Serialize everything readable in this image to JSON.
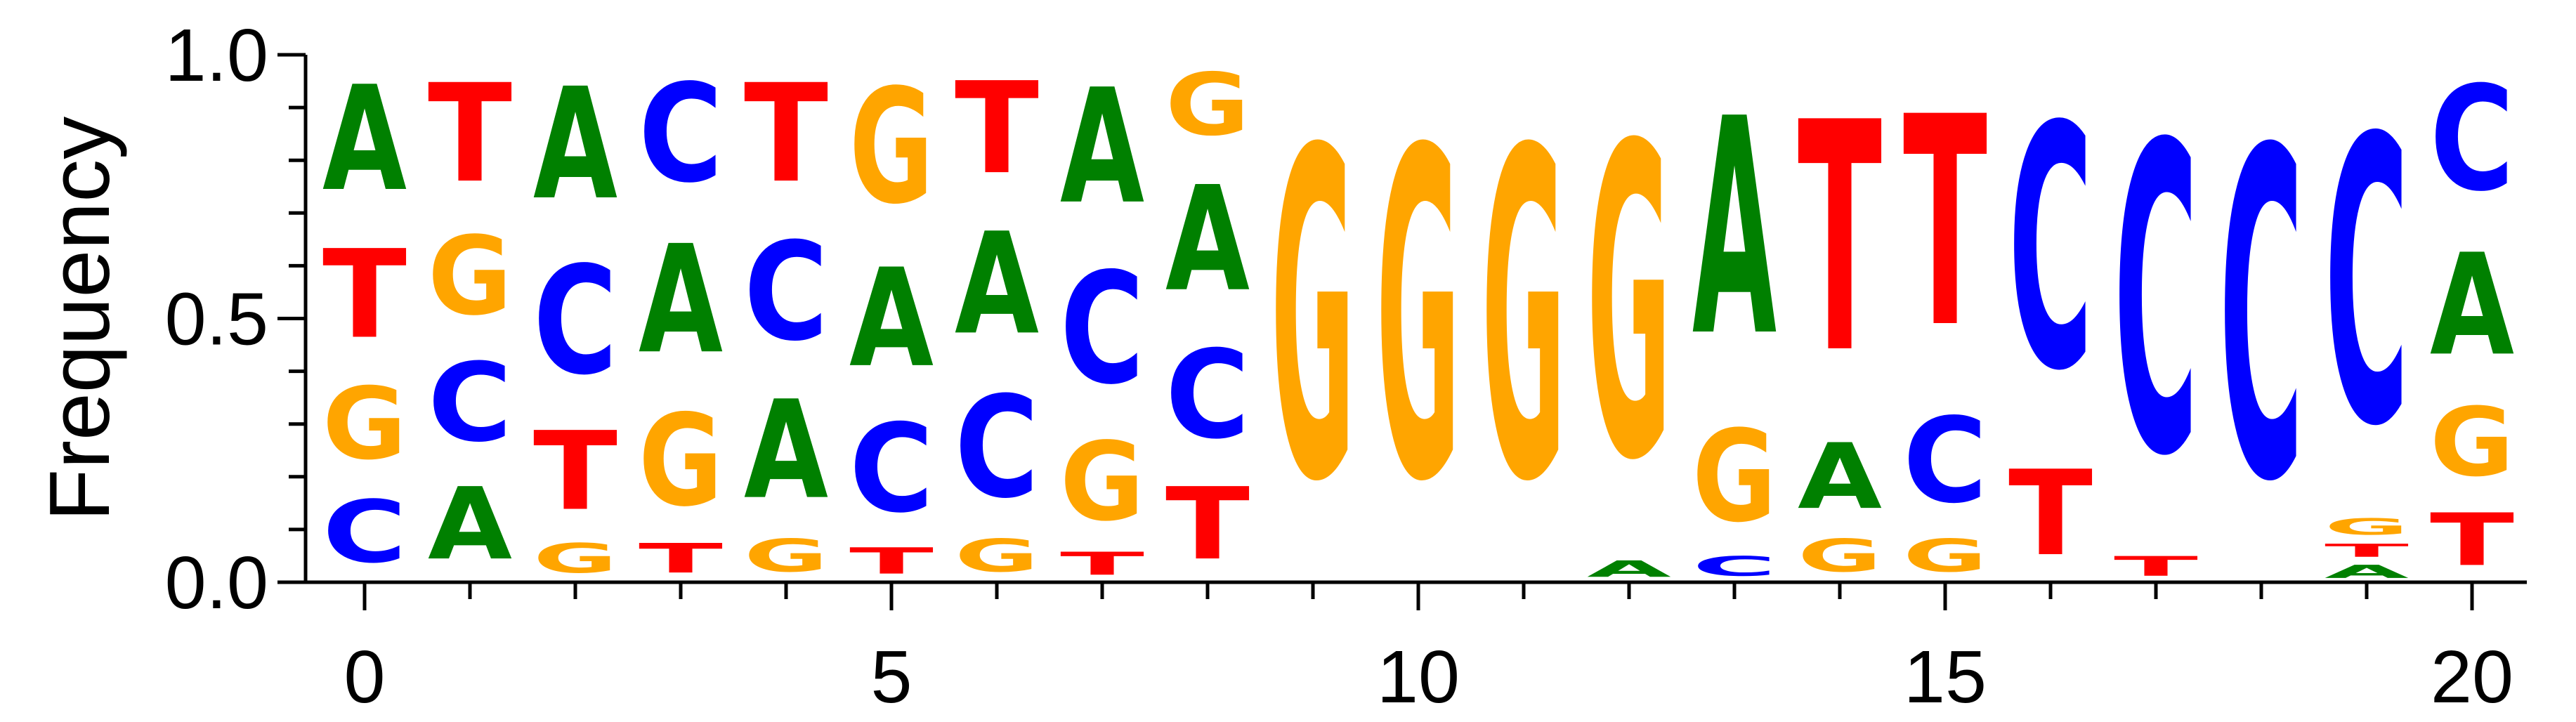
{
  "chart_data": {
    "type": "sequence-logo",
    "ylabel": "Frequency",
    "ylim": [
      0,
      1
    ],
    "yticks": [
      "0.0",
      "0.5",
      "1.0"
    ],
    "ytick_values": [
      0,
      0.5,
      1
    ],
    "xticks": [
      "0",
      "5",
      "10",
      "15",
      "20"
    ],
    "xtick_values": [
      0,
      5,
      10,
      15,
      20
    ],
    "colors": {
      "A": "#008000",
      "C": "#0000ff",
      "G": "#ffa500",
      "T": "#ff0000"
    },
    "positions": [
      {
        "pos": 0,
        "stack": [
          [
            "C",
            0.19
          ],
          [
            "G",
            0.22
          ],
          [
            "T",
            0.27
          ],
          [
            "A",
            0.32
          ]
        ]
      },
      {
        "pos": 1,
        "stack": [
          [
            "A",
            0.22
          ],
          [
            "C",
            0.24
          ],
          [
            "G",
            0.24
          ],
          [
            "T",
            0.3
          ]
        ]
      },
      {
        "pos": 2,
        "stack": [
          [
            "G",
            0.09
          ],
          [
            "T",
            0.24
          ],
          [
            "C",
            0.33
          ],
          [
            "A",
            0.34
          ]
        ]
      },
      {
        "pos": 3,
        "stack": [
          [
            "T",
            0.09
          ],
          [
            "G",
            0.28
          ],
          [
            "A",
            0.33
          ],
          [
            "C",
            0.3
          ]
        ]
      },
      {
        "pos": 4,
        "stack": [
          [
            "G",
            0.1
          ],
          [
            "A",
            0.3
          ],
          [
            "C",
            0.3
          ],
          [
            "T",
            0.3
          ]
        ]
      },
      {
        "pos": 5,
        "stack": [
          [
            "T",
            0.08
          ],
          [
            "C",
            0.27
          ],
          [
            "A",
            0.3
          ],
          [
            "G",
            0.35
          ]
        ]
      },
      {
        "pos": 6,
        "stack": [
          [
            "G",
            0.1
          ],
          [
            "C",
            0.31
          ],
          [
            "A",
            0.31
          ],
          [
            "T",
            0.28
          ]
        ]
      },
      {
        "pos": 7,
        "stack": [
          [
            "T",
            0.07
          ],
          [
            "G",
            0.24
          ],
          [
            "C",
            0.34
          ],
          [
            "A",
            0.35
          ]
        ]
      },
      {
        "pos": 8,
        "stack": [
          [
            "T",
            0.22
          ],
          [
            "C",
            0.27
          ],
          [
            "A",
            0.32
          ],
          [
            "G",
            0.19
          ]
        ]
      },
      {
        "pos": 9,
        "stack": [
          [
            "G",
            1.0
          ]
        ]
      },
      {
        "pos": 10,
        "stack": [
          [
            "G",
            1.0
          ]
        ]
      },
      {
        "pos": 11,
        "stack": [
          [
            "G",
            1.0
          ]
        ]
      },
      {
        "pos": 12,
        "stack": [
          [
            "A",
            0.05
          ],
          [
            "G",
            0.95
          ]
        ]
      },
      {
        "pos": 13,
        "stack": [
          [
            "C",
            0.06
          ],
          [
            "G",
            0.28
          ],
          [
            "A",
            0.66
          ]
        ]
      },
      {
        "pos": 14,
        "stack": [
          [
            "G",
            0.1
          ],
          [
            "A",
            0.2
          ],
          [
            "T",
            0.7
          ]
        ]
      },
      {
        "pos": 15,
        "stack": [
          [
            "G",
            0.1
          ],
          [
            "C",
            0.26
          ],
          [
            "T",
            0.64
          ]
        ]
      },
      {
        "pos": 16,
        "stack": [
          [
            "T",
            0.26
          ],
          [
            "C",
            0.74
          ]
        ]
      },
      {
        "pos": 17,
        "stack": [
          [
            "T",
            0.06
          ],
          [
            "C",
            0.94
          ]
        ]
      },
      {
        "pos": 18,
        "stack": [
          [
            "C",
            1.0
          ]
        ]
      },
      {
        "pos": 19,
        "stack": [
          [
            "A",
            0.04
          ],
          [
            "T",
            0.04
          ],
          [
            "G",
            0.05
          ],
          [
            "C",
            0.87
          ]
        ]
      },
      {
        "pos": 20,
        "stack": [
          [
            "T",
            0.16
          ],
          [
            "G",
            0.21
          ],
          [
            "A",
            0.31
          ],
          [
            "C",
            0.32
          ]
        ]
      }
    ]
  }
}
